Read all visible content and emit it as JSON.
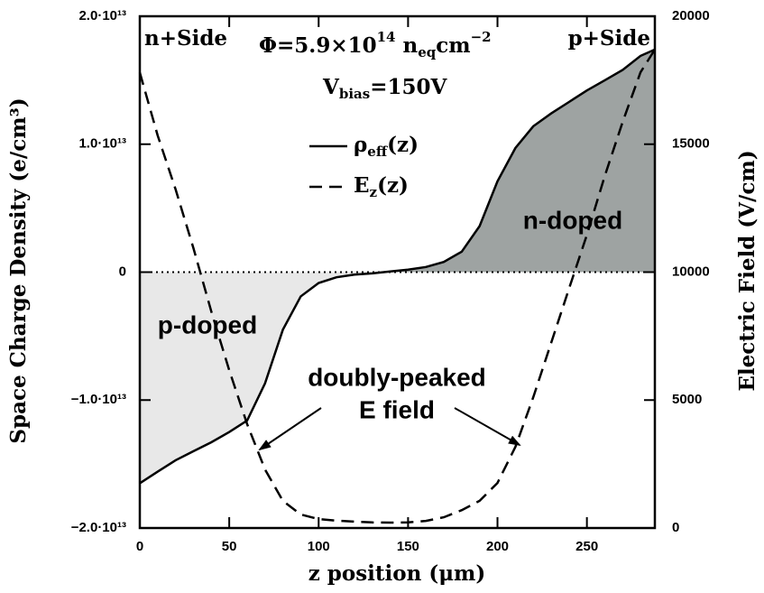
{
  "chart_data": {
    "type": "line",
    "x_label": "z position (μm)",
    "y_label": "Space Charge Density (e/cm³)",
    "y2_label": "Electric Field (V/cm)",
    "xlim": [
      0,
      288
    ],
    "xticks": [
      0,
      50,
      100,
      150,
      200,
      250
    ],
    "ylim": [
      -20000000000000.0,
      20000000000000.0
    ],
    "yticks": [
      {
        "value": 20000000000000.0,
        "label": "2.0·10¹³"
      },
      {
        "value": 10000000000000.0,
        "label": "1.0·10¹³"
      },
      0,
      {
        "value": -10000000000000.0,
        "label": "−1.0·10¹³"
      },
      {
        "value": -20000000000000.0,
        "label": "−2.0·10¹³"
      }
    ],
    "y2lim": [
      0,
      20000
    ],
    "y2ticks": [
      0,
      5000,
      10000,
      15000,
      20000
    ],
    "x": [
      0,
      10,
      20,
      30,
      40,
      50,
      60,
      70,
      80,
      90,
      100,
      110,
      120,
      130,
      140,
      150,
      160,
      170,
      180,
      190,
      200,
      210,
      220,
      230,
      240,
      250,
      260,
      270,
      280,
      288
    ],
    "series": [
      {
        "name": [
          "ρ",
          "eff",
          "(z)"
        ],
        "style": "solid",
        "color": "#000000",
        "fill_above": "#9ea3a2",
        "fill_below": "#e8e8e8",
        "values": [
          -16500000000000.0,
          -15600000000000.0,
          -14700000000000.0,
          -14000000000000.0,
          -13300000000000.0,
          -12500000000000.0,
          -11600000000000.0,
          -8700000000000.0,
          -4500000000000.0,
          -1900000000000.0,
          -850000000000.0,
          -400000000000.0,
          -200000000000.0,
          -100000000000.0,
          50000000000.0,
          200000000000.0,
          400000000000.0,
          800000000000.0,
          1600000000000.0,
          3600000000000.0,
          7100000000000.0,
          9700000000000.0,
          11400000000000.0,
          12400000000000.0,
          13300000000000.0,
          14200000000000.0,
          15000000000000.0,
          15800000000000.0,
          16900000000000.0,
          17400000000000.0
        ]
      },
      {
        "name": [
          "E",
          "z",
          "(z)"
        ],
        "style": "dashed",
        "color": "#000000",
        "axis": "y2",
        "values": [
          17800,
          15340,
          13230,
          10930,
          8460,
          6170,
          4060,
          2290,
          1060,
          530,
          350,
          290,
          250,
          220,
          210,
          220,
          280,
          420,
          700,
          1060,
          1760,
          3170,
          5110,
          7230,
          9350,
          11460,
          13760,
          15870,
          17810,
          18700
        ]
      }
    ],
    "zero_line": true,
    "annotations": {
      "left_side": "n+Side",
      "right_side": "p+Side",
      "fluence": [
        "Φ=5.9×10",
        "14",
        " n",
        "eq",
        "cm",
        "−2"
      ],
      "bias": [
        "V",
        "bias",
        "=150V"
      ],
      "region_n": "n-doped",
      "region_p": "p-doped",
      "peak_note": [
        "doubly-peaked",
        "E field"
      ]
    }
  }
}
